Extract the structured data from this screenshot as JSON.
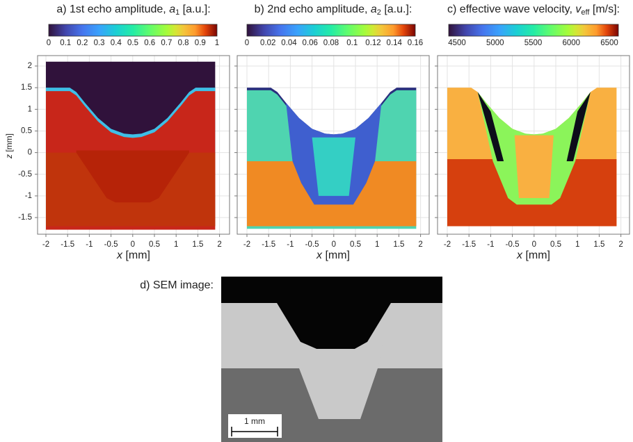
{
  "panels": [
    {
      "title": {
        "prefix": "a) 1st echo amplitude, ",
        "symbol": "a",
        "subscript": "1",
        "suffix": " [a.u.]:"
      },
      "colorbar_ticks": [
        0,
        0.1,
        0.2,
        0.3,
        0.4,
        0.5,
        0.6,
        0.7,
        0.8,
        0.9,
        1
      ],
      "x_label": {
        "symbol": "x",
        "suffix": " [mm]"
      },
      "x_ticks": [
        -2,
        -1.5,
        -1,
        -0.5,
        0,
        0.5,
        1,
        1.5,
        2
      ]
    },
    {
      "title": {
        "prefix": "b) 2nd echo amplitude, ",
        "symbol": "a",
        "subscript": "2",
        "suffix": " [a.u.]:"
      },
      "colorbar_ticks": [
        0,
        0.02,
        0.04,
        0.06,
        0.08,
        0.1,
        0.12,
        0.14,
        0.16
      ],
      "x_label": {
        "symbol": "x",
        "suffix": " [mm]"
      },
      "x_ticks": [
        -2,
        -1.5,
        -1,
        -0.5,
        0,
        0.5,
        1,
        1.5,
        2
      ]
    },
    {
      "title": {
        "prefix": "c) effective wave velocity, ",
        "symbol": "v",
        "subscript": "eff",
        "suffix": " [m/s]:"
      },
      "colorbar_ticks": [
        4500,
        5000,
        5500,
        6000,
        6500
      ],
      "x_label": {
        "symbol": "x",
        "suffix": " [mm]"
      },
      "x_ticks": [
        -2,
        -1.5,
        -1,
        -0.5,
        0,
        0.5,
        1,
        1.5,
        2
      ]
    }
  ],
  "z_axis": {
    "label": {
      "symbol": "z",
      "suffix": " [mm]"
    },
    "ticks": [
      2,
      1.5,
      1,
      0.5,
      0,
      -0.5,
      -1,
      -1.5
    ]
  },
  "sem": {
    "label": "d) SEM image:",
    "scale_bar": "1 mm"
  }
}
